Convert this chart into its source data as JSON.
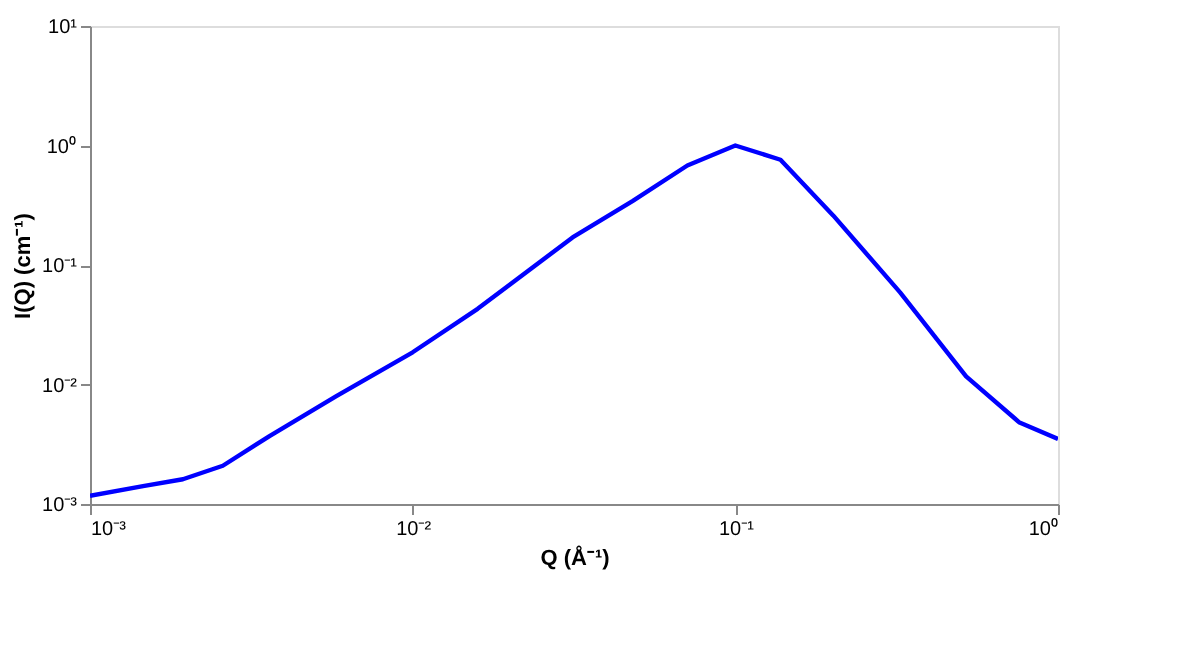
{
  "chart_data": {
    "type": "line",
    "xlabel": "Q (Å⁻¹)",
    "ylabel": "I(Q) (cm⁻¹)",
    "log": "xy",
    "grid": false,
    "legend": false,
    "marker": "none",
    "line_style": "solid",
    "xlim": [
      0.001,
      1
    ],
    "ylim": [
      0.001,
      10
    ],
    "xticks": [
      {
        "value": 0.001,
        "label": "10⁻³"
      },
      {
        "value": 0.01,
        "label": "10⁻²"
      },
      {
        "value": 0.1,
        "label": "10⁻¹"
      },
      {
        "value": 1,
        "label": "10⁰"
      }
    ],
    "yticks": [
      {
        "value": 0.001,
        "label": "10⁻³"
      },
      {
        "value": 0.01,
        "label": "10⁻²"
      },
      {
        "value": 0.1,
        "label": "10⁻¹"
      },
      {
        "value": 1,
        "label": "10⁰"
      },
      {
        "value": 10,
        "label": "10¹"
      }
    ],
    "series": [
      {
        "color": "#0000ff",
        "x": [
          0.001,
          0.00146,
          0.00194,
          0.00258,
          0.0036,
          0.0058,
          0.01,
          0.0159,
          0.0313,
          0.048,
          0.071,
          0.1,
          0.138,
          0.201,
          0.324,
          0.519,
          0.76,
          1.0
        ],
        "values": [
          0.00117,
          0.00141,
          0.00161,
          0.00209,
          0.0037,
          0.008,
          0.0186,
          0.043,
          0.17,
          0.343,
          0.68,
          1.0,
          0.76,
          0.26,
          0.059,
          0.0117,
          0.0048,
          0.0035
        ]
      }
    ]
  }
}
